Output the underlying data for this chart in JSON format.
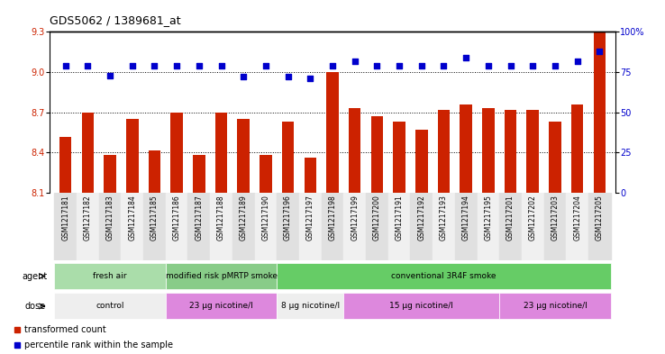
{
  "title": "GDS5062 / 1389681_at",
  "samples": [
    "GSM1217181",
    "GSM1217182",
    "GSM1217183",
    "GSM1217184",
    "GSM1217185",
    "GSM1217186",
    "GSM1217187",
    "GSM1217188",
    "GSM1217189",
    "GSM1217190",
    "GSM1217196",
    "GSM1217197",
    "GSM1217198",
    "GSM1217199",
    "GSM1217200",
    "GSM1217191",
    "GSM1217192",
    "GSM1217193",
    "GSM1217194",
    "GSM1217195",
    "GSM1217201",
    "GSM1217202",
    "GSM1217203",
    "GSM1217204",
    "GSM1217205"
  ],
  "bar_values": [
    8.52,
    8.7,
    8.38,
    8.65,
    8.42,
    8.7,
    8.38,
    8.7,
    8.65,
    8.38,
    8.63,
    8.36,
    9.0,
    8.73,
    8.67,
    8.63,
    8.57,
    8.72,
    8.76,
    8.73,
    8.72,
    8.72,
    8.63,
    8.76,
    9.3
  ],
  "percentile_values": [
    79,
    79,
    73,
    79,
    79,
    79,
    79,
    79,
    72,
    79,
    72,
    71,
    79,
    82,
    79,
    79,
    79,
    79,
    84,
    79,
    79,
    79,
    79,
    82,
    88
  ],
  "ylim_left": [
    8.1,
    9.3
  ],
  "ylim_right": [
    0,
    100
  ],
  "yticks_left": [
    8.1,
    8.4,
    8.7,
    9.0,
    9.3
  ],
  "yticks_right": [
    0,
    25,
    50,
    75,
    100
  ],
  "ytick_labels_right": [
    "0",
    "25",
    "50",
    "75",
    "100%"
  ],
  "bar_color": "#cc2200",
  "dot_color": "#0000cc",
  "agent_groups": [
    {
      "label": "fresh air",
      "start": 0,
      "end": 5,
      "color": "#aaddaa"
    },
    {
      "label": "modified risk pMRTP smoke",
      "start": 5,
      "end": 10,
      "color": "#88cc88"
    },
    {
      "label": "conventional 3R4F smoke",
      "start": 10,
      "end": 25,
      "color": "#66cc66"
    }
  ],
  "dose_groups": [
    {
      "label": "control",
      "start": 0,
      "end": 5,
      "color": "#eeeeee"
    },
    {
      "label": "23 μg nicotine/l",
      "start": 5,
      "end": 10,
      "color": "#dd88dd"
    },
    {
      "label": "8 μg nicotine/l",
      "start": 10,
      "end": 13,
      "color": "#eeeeee"
    },
    {
      "label": "15 μg nicotine/l",
      "start": 13,
      "end": 20,
      "color": "#dd88dd"
    },
    {
      "label": "23 μg nicotine/l",
      "start": 20,
      "end": 25,
      "color": "#dd88dd"
    }
  ],
  "legend_items": [
    {
      "label": "transformed count",
      "color": "#cc2200"
    },
    {
      "label": "percentile rank within the sample",
      "color": "#0000cc"
    }
  ]
}
